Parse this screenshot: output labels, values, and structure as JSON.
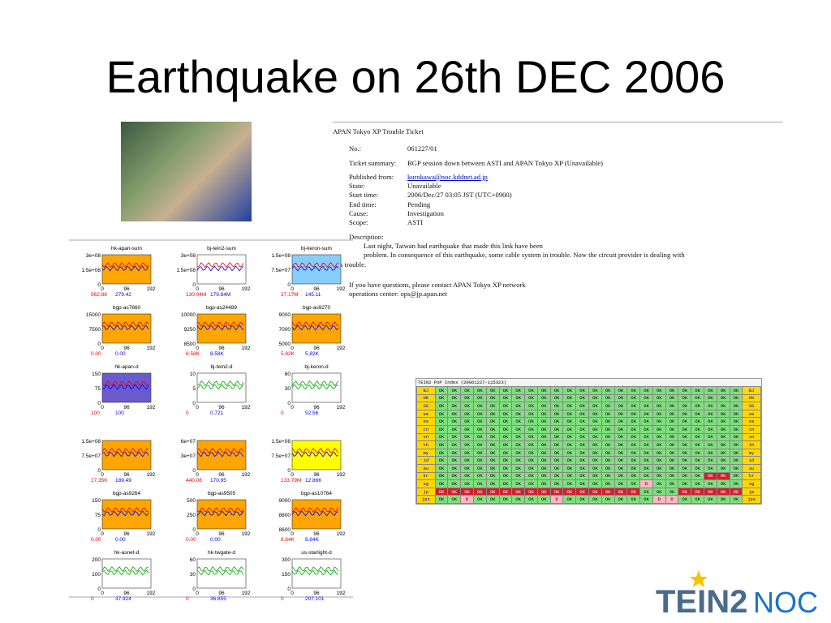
{
  "header": {
    "title": "Earthquake on 26th DEC 2006"
  },
  "ticket": {
    "heading": "APAN Tokyo XP Trouble Ticket",
    "fields": [
      [
        "No.:",
        "061227/01"
      ],
      [
        "Ticket summary:",
        "BGP session down between ASTI and APAN Tokyo XP (Unavailable)"
      ],
      [
        "Published from:",
        "kurokawa@noc.kddnet.ad.jp"
      ],
      [
        "State:",
        "Unavailable"
      ],
      [
        "Start time:",
        "2006/Dec/27 03:05 JST (UTC+0900)"
      ],
      [
        "End time:",
        "Pending"
      ],
      [
        "Cause:",
        "Investigation"
      ],
      [
        "Scope:",
        "ASTI"
      ],
      [
        "Description:",
        ""
      ]
    ],
    "description": [
      "Last night, Taiwan had earthquake that made this link have been",
      "problem. In consequence of this earthquake, some cable system in trouble. Now the circuit provider is dealing with",
      "this trouble."
    ],
    "contact": [
      "If you have questions, please contact APAN Tokyo XP network",
      "operations center: ops@jp.apan.net"
    ]
  },
  "graphs": {
    "xticks": [
      "0",
      "96",
      "192"
    ],
    "panels": [
      {
        "name": "hk-apan-sum",
        "y": [
          "3e+08",
          "1.5e+08",
          "0"
        ],
        "now": [
          "562.88",
          "279.42"
        ],
        "bg": "#ffa500"
      },
      {
        "name": "bj-tein2-sum",
        "y": [
          "3e+08",
          "1.5e+08",
          "0"
        ],
        "now": [
          "130.04M",
          "179.84M"
        ],
        "bg": "#ffffff"
      },
      {
        "name": "bj-keron-sum",
        "y": [
          "1.5e+08",
          "7.5e+07",
          "0"
        ],
        "now": [
          "37.17M",
          "145.11"
        ],
        "bg": "#87cefa"
      },
      {
        "name": "bgp-as7660",
        "y": [
          "15000",
          "7500",
          "0"
        ],
        "now": [
          "0.00",
          "0.00"
        ],
        "bg": "#ffa500"
      },
      {
        "name": "bgp-as24489",
        "y": [
          "10000",
          "9250",
          "8500"
        ],
        "now": [
          "8.58K",
          "8.58K"
        ],
        "bg": "#ffa500"
      },
      {
        "name": "bgp-as9270",
        "y": [
          "9000",
          "7000",
          "5000"
        ],
        "now": [
          "5.82K",
          "5.82K"
        ],
        "bg": "#ffa500"
      },
      {
        "name": "hk-apan-d",
        "y": [
          "150",
          "75",
          "0"
        ],
        "now": [
          "100",
          "100"
        ],
        "bg": "#6a5acd"
      },
      {
        "name": "bj-tein2-d",
        "y": [
          "10",
          "5",
          "0"
        ],
        "now": [
          "0",
          "0.721"
        ],
        "bg": "#ffffff"
      },
      {
        "name": "bj-keron-d",
        "y": [
          "60",
          "30",
          "0"
        ],
        "now": [
          "0",
          "52.56"
        ],
        "bg": "#ffffff"
      },
      {
        "y": [
          "1.5e+08",
          "7.5e+07",
          "0"
        ],
        "now": [
          "17.35K",
          "189.49"
        ],
        "bg": "#ffa500"
      },
      {
        "y": [
          "6e+07",
          "3e+07",
          "0"
        ],
        "now": [
          "440.08",
          "170.95"
        ],
        "bg": "#ffa500"
      },
      {
        "y": [
          "1.5e+08",
          "7.5e+07",
          "0"
        ],
        "now": [
          "133.79M",
          "12.86K"
        ],
        "bg": "#ffff00"
      },
      {
        "name": "bgp-as9264",
        "y": [
          "150",
          "75",
          "0"
        ],
        "now": [
          "0.00",
          "0.00"
        ],
        "bg": "#ffa500"
      },
      {
        "name": "bgp-as9505",
        "y": [
          "500",
          "250",
          "0"
        ],
        "now": [
          "0.00",
          "0.00"
        ],
        "bg": "#ffa500"
      },
      {
        "name": "bgp-as10764",
        "y": [
          "9000",
          "8800",
          "8600"
        ],
        "now": [
          "8.64K",
          "8.64K"
        ],
        "bg": "#ffa500"
      },
      {
        "name": "hk-asnet-d",
        "y": [
          "200",
          "100",
          "0"
        ],
        "now": [
          "0",
          "37.924"
        ],
        "bg": "#ffffff"
      },
      {
        "name": "hk-twgate-d",
        "y": [
          "60",
          "30",
          "0"
        ],
        "now": [
          "0",
          "36.855"
        ],
        "bg": "#ffffff"
      },
      {
        "name": "us-starlight-d",
        "y": [
          "300",
          "150",
          "0"
        ],
        "now": [
          "0",
          "207.101"
        ],
        "bg": "#ffffff"
      }
    ]
  },
  "pop": {
    "title": "TEIN2 PoP Index (20061227-115323)",
    "rows": [
      {
        "label": "BJ",
        "cells": [
          "OK",
          "OK",
          "OK",
          "OK",
          "OK",
          "OK",
          "OK",
          "OK",
          "OK",
          "OK",
          "OK",
          "OK",
          "OK",
          "OK",
          "OK",
          "OK",
          "OK",
          "OK",
          "OK",
          "OK",
          "OK",
          "OK",
          "OK",
          "OK"
        ]
      },
      {
        "label": "HK",
        "cells": [
          "OK",
          "OK",
          "OK",
          "OK",
          "OK",
          "OK",
          "OK",
          "OK",
          "OK",
          "OK",
          "OK",
          "OK",
          "OK",
          "OK",
          "OK",
          "OK",
          "OK",
          "OK",
          "OK",
          "OK",
          "OK",
          "OK",
          "OK",
          "OK"
        ]
      },
      {
        "label": "SG",
        "cells": [
          "OK",
          "OK",
          "OK",
          "OK",
          "OK",
          "OK",
          "OK",
          "OK",
          "OK",
          "OK",
          "OK",
          "OK",
          "OK",
          "OK",
          "OK",
          "OK",
          "OK",
          "OK",
          "OK",
          "OK",
          "OK",
          "OK",
          "OK",
          "OK"
        ]
      },
      {
        "label": "ee",
        "cells": [
          "OK",
          "OK",
          "OK",
          "OK",
          "OK",
          "OK",
          "OK",
          "OK",
          "OK",
          "OK",
          "OK",
          "OK",
          "OK",
          "OK",
          "OK",
          "OK",
          "OK",
          "OK",
          "OK",
          "OK",
          "OK",
          "OK",
          "OK",
          "OK"
        ]
      },
      {
        "label": "es",
        "cells": [
          "OK",
          "OK",
          "OK",
          "OK",
          "OK",
          "OK",
          "OK",
          "OK",
          "OK",
          "OK",
          "OK",
          "OK",
          "OK",
          "OK",
          "OK",
          "OK",
          "OK",
          "OK",
          "OK",
          "OK",
          "OK",
          "OK",
          "OK",
          "OK"
        ]
      },
      {
        "label": "cn",
        "cells": [
          "OK",
          "OK",
          "OK",
          "OK",
          "OK",
          "OK",
          "OK",
          "OK",
          "OK",
          "OK",
          "OK",
          "OK",
          "OK",
          "OK",
          "OK",
          "OK",
          "OK",
          "OK",
          "OK",
          "OK",
          "OK",
          "OK",
          "OK",
          "OK"
        ]
      },
      {
        "label": "vn",
        "cells": [
          "OK",
          "OK",
          "OK",
          "OK",
          "OK",
          "OK",
          "OK",
          "OK",
          "OK",
          "OK",
          "OK",
          "OK",
          "OK",
          "OK",
          "OK",
          "OK",
          "OK",
          "OK",
          "OK",
          "OK",
          "OK",
          "OK",
          "OK",
          "OK"
        ]
      },
      {
        "label": "th",
        "cells": [
          "OK",
          "OK",
          "OK",
          "OK",
          "OK",
          "OK",
          "OK",
          "OK",
          "OK",
          "OK",
          "OK",
          "OK",
          "OK",
          "OK",
          "OK",
          "OK",
          "OK",
          "OK",
          "OK",
          "OK",
          "OK",
          "OK",
          "OK",
          "OK"
        ]
      },
      {
        "label": "my",
        "cells": [
          "OK",
          "OK",
          "OK",
          "OK",
          "OK",
          "OK",
          "OK",
          "OK",
          "OK",
          "OK",
          "OK",
          "OK",
          "OK",
          "OK",
          "OK",
          "OK",
          "OK",
          "OK",
          "OK",
          "OK",
          "OK",
          "OK",
          "OK",
          "OK"
        ]
      },
      {
        "label": "id",
        "cells": [
          "OK",
          "OK",
          "OK",
          "OK",
          "OK",
          "OK",
          "OK",
          "OK",
          "OK",
          "OK",
          "OK",
          "OK",
          "OK",
          "OK",
          "OK",
          "OK",
          "OK",
          "OK",
          "OK",
          "OK",
          "OK",
          "OK",
          "OK",
          "OK"
        ]
      },
      {
        "label": "au",
        "cells": [
          "OK",
          "OK",
          "OK",
          "OK",
          "OK",
          "OK",
          "OK",
          "OK",
          "OK",
          "OK",
          "OK",
          "OK",
          "OK",
          "OK",
          "OK",
          "OK",
          "OK",
          "OK",
          "OK",
          "OK",
          "OK",
          "OK",
          "OK",
          "OK"
        ]
      },
      {
        "label": "kr",
        "cells": [
          "OK",
          "OK",
          "OK",
          "OK",
          "OK",
          "OK",
          "OK",
          "OK",
          "OK",
          "OK",
          "OK",
          "OK",
          "OK",
          "OK",
          "OK",
          "OK",
          "OK",
          "OK",
          "OK",
          "OK",
          "OK",
          "OK",
          "OK",
          "OK"
        ],
        "red": [
          21,
          22
        ]
      },
      {
        "label": "sg",
        "cells": [
          "OK",
          "OK",
          "OK",
          "OK",
          "OK",
          "OK",
          "OK",
          "OK",
          "OK",
          "OK",
          "OK",
          "OK",
          "OK",
          "OK",
          "OK",
          "OK",
          "D",
          "OK",
          "OK",
          "OK",
          "OK",
          "OK",
          "OK",
          "OK"
        ],
        "pink": [
          16
        ]
      },
      {
        "label": "jp",
        "cells": [
          "OK",
          "OK",
          "OK",
          "OK",
          "OK",
          "OK",
          "OK",
          "OK",
          "OK",
          "OK",
          "OK",
          "OK",
          "OK",
          "OK",
          "OK",
          "OK",
          "OK",
          "OK",
          "OK",
          "OK",
          "OK",
          "OK",
          "OK",
          "OK"
        ],
        "red": [
          0,
          1,
          2,
          3,
          4,
          5,
          6,
          7,
          8,
          9,
          10,
          11,
          12,
          13,
          14,
          15,
          19,
          20,
          21,
          22,
          23
        ]
      },
      {
        "label": "jps",
        "cells": [
          "OK",
          "OK",
          "D",
          "OK",
          "OK",
          "OK",
          "OK",
          "OK",
          "OK",
          "D",
          "OK",
          "OK",
          "OK",
          "OK",
          "OK",
          "OK",
          "OK",
          "D",
          "D",
          "OK",
          "OK",
          "OK",
          "OK",
          "OK"
        ],
        "pink": [
          2,
          9,
          17,
          18
        ]
      }
    ]
  },
  "logo": {
    "main": "TEIN2",
    "sub": "NOC"
  }
}
